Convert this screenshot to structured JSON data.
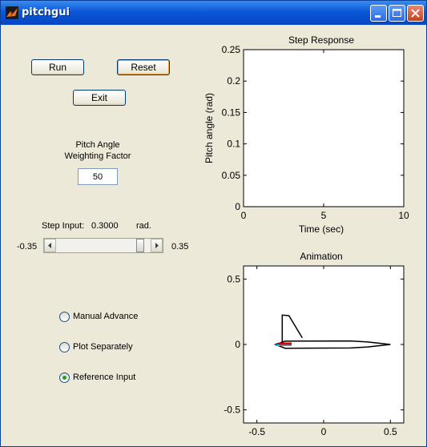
{
  "window": {
    "title": "pitchgui",
    "app_icon": "matlab-icon"
  },
  "controls": {
    "run_label": "Run",
    "reset_label": "Reset",
    "exit_label": "Exit",
    "weight_label_line1": "Pitch Angle",
    "weight_label_line2": "Weighting Factor",
    "weight_value": "50",
    "step_label": "Step Input:",
    "step_value": "0.3000",
    "step_unit": "rad.",
    "slider_min_label": "-0.35",
    "slider_max_label": "0.35",
    "slider_fraction": 0.93
  },
  "radios": [
    {
      "label": "Manual Advance",
      "selected": false
    },
    {
      "label": "Plot Separately",
      "selected": false
    },
    {
      "label": "Reference Input",
      "selected": true
    }
  ],
  "chart_data": [
    {
      "type": "line",
      "title": "Step Response",
      "xlabel": "Time (sec)",
      "ylabel": "Pitch angle (rad)",
      "xlim": [
        0,
        10
      ],
      "ylim": [
        0,
        0.25
      ],
      "xticks": [
        "0",
        "5",
        "10"
      ],
      "yticks": [
        "0",
        "0.05",
        "0.1",
        "0.15",
        "0.2",
        "0.25"
      ],
      "series": []
    },
    {
      "type": "line",
      "title": "Animation",
      "xlim": [
        -0.6,
        0.6
      ],
      "ylim": [
        -0.6,
        0.6
      ],
      "xticks": [
        "-0.5",
        "0",
        "0.5"
      ],
      "yticks": [
        "0.5",
        "0",
        "-0.5"
      ],
      "fuselage": [
        [
          -0.36,
          0.0
        ],
        [
          -0.29,
          0.025
        ],
        [
          0.2,
          0.027
        ],
        [
          0.33,
          0.019
        ],
        [
          0.5,
          0.0
        ],
        [
          0.33,
          -0.019
        ],
        [
          0.2,
          -0.027
        ],
        [
          -0.29,
          -0.029
        ],
        [
          -0.36,
          0.0
        ]
      ],
      "tail_fin": [
        [
          -0.31,
          0.018
        ],
        [
          -0.31,
          0.225
        ],
        [
          -0.26,
          0.22
        ],
        [
          -0.16,
          0.05
        ]
      ],
      "elevator": [
        [
          -0.36,
          0.0
        ],
        [
          -0.24,
          0.0
        ]
      ],
      "colors": {
        "airframe": "#000000",
        "elevator": "#e00000",
        "accent": "#00c0e0"
      }
    }
  ]
}
